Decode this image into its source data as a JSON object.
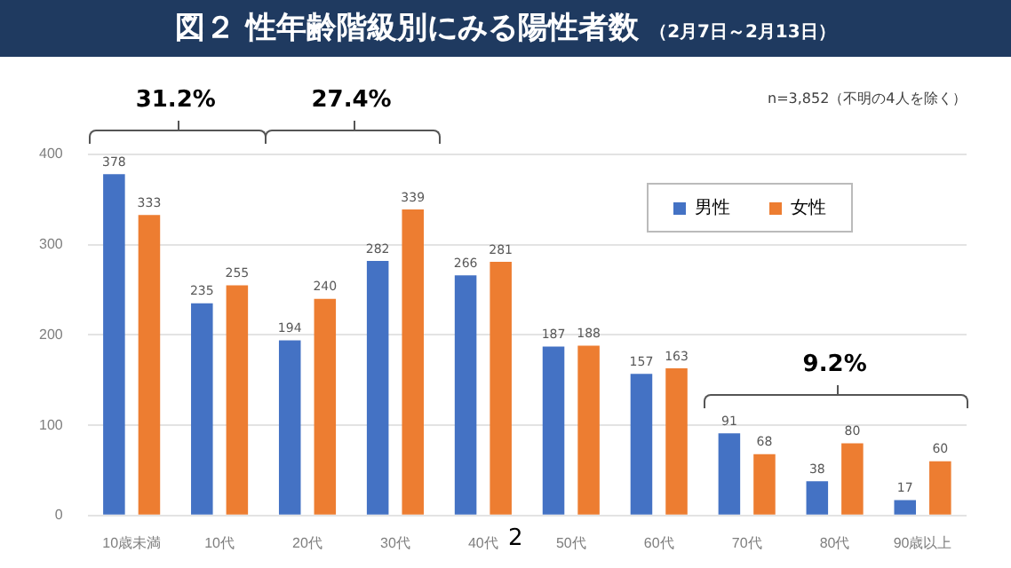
{
  "chart_data": {
    "type": "bar",
    "title": "図２ 性年齢階級別にみる陽性者数",
    "subtitle": "（2月7日～2月13日）",
    "categories": [
      "10歳未満",
      "10代",
      "20代",
      "30代",
      "40代",
      "50代",
      "60代",
      "70代",
      "80代",
      "90歳以上"
    ],
    "series": [
      {
        "name": "男性",
        "color": "#4472c4",
        "values": [
          378,
          235,
          194,
          282,
          266,
          187,
          157,
          91,
          38,
          17
        ]
      },
      {
        "name": "女性",
        "color": "#ed7d31",
        "values": [
          333,
          255,
          240,
          339,
          281,
          188,
          163,
          68,
          80,
          60
        ]
      }
    ],
    "ylim": [
      0,
      400
    ],
    "yticks": [
      0,
      100,
      200,
      300,
      400
    ],
    "grid": "y",
    "legend": "top right",
    "data_labels": true,
    "annotations": [
      "31.2%",
      "27.4%",
      "9.2%",
      "n=3,852（不明の4人を除く）",
      "2"
    ]
  }
}
